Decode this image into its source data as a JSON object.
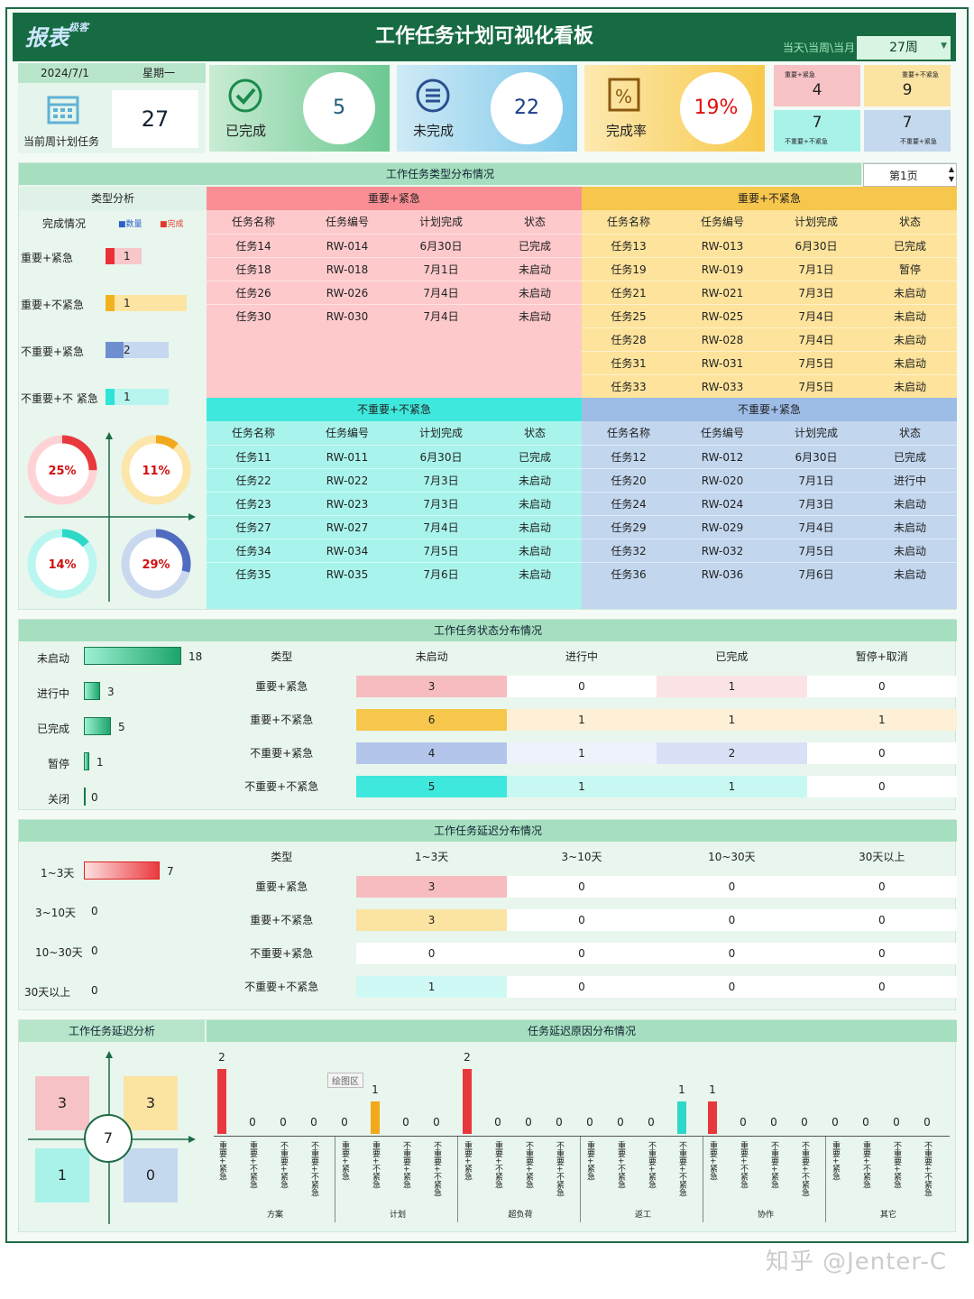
{
  "header": {
    "logo": "报表",
    "logo_sub": "极客",
    "title": "工作任务计划可视化看板",
    "scope": "当天\\当周\\当月",
    "week": "27周"
  },
  "date_card": {
    "date": "2024/7/1",
    "weekday": "星期一",
    "count": "27",
    "label": "当前周计划任务"
  },
  "kpis": [
    {
      "label": "已完成",
      "value": "5",
      "icon": "check-icon"
    },
    {
      "label": "未完成",
      "value": "22",
      "icon": "list-icon"
    },
    {
      "label": "完成率",
      "value": "19%",
      "icon": "percent-icon"
    }
  ],
  "quadrant_mini": [
    {
      "label": "重要+紧急",
      "value": "4"
    },
    {
      "label": "重要+不紧急",
      "value": "9"
    },
    {
      "label": "不重要+不紧急",
      "value": "7"
    },
    {
      "label": "不重要+紧急",
      "value": "7"
    }
  ],
  "type_section": {
    "title": "工作任务类型分布情况",
    "page": "第1页",
    "analysis_title": "类型分析",
    "completion_label": "完成情况",
    "legend_count": "■数量",
    "legend_done": "■完成",
    "bars": [
      {
        "label": "重要+紧急",
        "count": 4,
        "done": 1,
        "value": "1"
      },
      {
        "label": "重要+不紧急",
        "count": 9,
        "done": 1,
        "value": "1"
      },
      {
        "label": "不重要+紧急",
        "count": 7,
        "done": 2,
        "value": "2"
      },
      {
        "label": "不重要+不 紧急",
        "count": 7,
        "done": 1,
        "value": "1"
      }
    ],
    "rings": [
      {
        "pct": 0.25,
        "text": "25%"
      },
      {
        "pct": 0.11,
        "text": "11%"
      },
      {
        "pct": 0.14,
        "text": "14%"
      },
      {
        "pct": 0.29,
        "text": "29%"
      }
    ],
    "columns": [
      "任务名称",
      "任务编号",
      "计划完成",
      "状态"
    ],
    "quadrants": [
      {
        "title": "重要+紧急",
        "rows": [
          [
            "任务14",
            "RW-014",
            "6月30日",
            "已完成"
          ],
          [
            "任务18",
            "RW-018",
            "7月1日",
            "未启动"
          ],
          [
            "任务26",
            "RW-026",
            "7月4日",
            "未启动"
          ],
          [
            "任务30",
            "RW-030",
            "7月4日",
            "未启动"
          ]
        ]
      },
      {
        "title": "重要+不紧急",
        "rows": [
          [
            "任务13",
            "RW-013",
            "6月30日",
            "已完成"
          ],
          [
            "任务19",
            "RW-019",
            "7月1日",
            "暂停"
          ],
          [
            "任务21",
            "RW-021",
            "7月3日",
            "未启动"
          ],
          [
            "任务25",
            "RW-025",
            "7月4日",
            "未启动"
          ],
          [
            "任务28",
            "RW-028",
            "7月4日",
            "未启动"
          ],
          [
            "任务31",
            "RW-031",
            "7月5日",
            "未启动"
          ],
          [
            "任务33",
            "RW-033",
            "7月5日",
            "未启动"
          ]
        ]
      },
      {
        "title": "不重要+不紧急",
        "rows": [
          [
            "任务11",
            "RW-011",
            "6月30日",
            "已完成"
          ],
          [
            "任务22",
            "RW-022",
            "7月3日",
            "未启动"
          ],
          [
            "任务23",
            "RW-023",
            "7月3日",
            "未启动"
          ],
          [
            "任务27",
            "RW-027",
            "7月4日",
            "未启动"
          ],
          [
            "任务34",
            "RW-034",
            "7月5日",
            "未启动"
          ],
          [
            "任务35",
            "RW-035",
            "7月6日",
            "未启动"
          ]
        ]
      },
      {
        "title": "不重要+紧急",
        "rows": [
          [
            "任务12",
            "RW-012",
            "6月30日",
            "已完成"
          ],
          [
            "任务20",
            "RW-020",
            "7月1日",
            "进行中"
          ],
          [
            "任务24",
            "RW-024",
            "7月3日",
            "未启动"
          ],
          [
            "任务29",
            "RW-029",
            "7月4日",
            "未启动"
          ],
          [
            "任务32",
            "RW-032",
            "7月5日",
            "未启动"
          ],
          [
            "任务36",
            "RW-036",
            "7月6日",
            "未启动"
          ]
        ]
      }
    ]
  },
  "status_section": {
    "title": "工作任务状态分布情况",
    "bars": [
      {
        "label": "未启动",
        "value": 18
      },
      {
        "label": "进行中",
        "value": 3
      },
      {
        "label": "已完成",
        "value": 5
      },
      {
        "label": "暂停",
        "value": 1
      },
      {
        "label": "关闭",
        "value": 0
      }
    ],
    "columns": [
      "类型",
      "未启动",
      "进行中",
      "已完成",
      "暂停+取消"
    ],
    "rows": [
      [
        "重要+紧急",
        "3",
        "0",
        "1",
        "0"
      ],
      [
        "重要+不紧急",
        "6",
        "1",
        "1",
        "1"
      ],
      [
        "不重要+紧急",
        "4",
        "1",
        "2",
        "0"
      ],
      [
        "不重要+不紧急",
        "5",
        "1",
        "1",
        "0"
      ]
    ]
  },
  "delay_section": {
    "title": "工作任务延迟分布情况",
    "bars": [
      {
        "label": "1~3天",
        "value": 7
      },
      {
        "label": "3~10天",
        "value": 0
      },
      {
        "label": "10~30天",
        "value": 0
      },
      {
        "label": "30天以上",
        "value": 0
      }
    ],
    "columns": [
      "类型",
      "1~3天",
      "3~10天",
      "10~30天",
      "30天以上"
    ],
    "rows": [
      [
        "重要+紧急",
        "3",
        "0",
        "0",
        "0"
      ],
      [
        "重要+不紧急",
        "3",
        "0",
        "0",
        "0"
      ],
      [
        "不重要+紧急",
        "0",
        "0",
        "0",
        "0"
      ],
      [
        "不重要+不紧急",
        "1",
        "0",
        "0",
        "0"
      ]
    ]
  },
  "delay_analysis": {
    "title": "工作任务延迟分析",
    "center": "7",
    "quads": [
      "3",
      "3",
      "1",
      "0"
    ]
  },
  "chart_data": {
    "type": "bar",
    "title": "任务延迟原因分布情况",
    "tooltip": "绘图区",
    "groups": [
      "方案",
      "计划",
      "超负荷",
      "返工",
      "协作",
      "其它"
    ],
    "categories": [
      "重要+紧急",
      "重要+不紧急",
      "不重要+紧急",
      "不重要+不紧急"
    ],
    "values": [
      [
        2,
        0,
        0,
        0
      ],
      [
        0,
        1,
        0,
        0
      ],
      [
        2,
        0,
        0,
        0
      ],
      [
        0,
        0,
        0,
        1
      ],
      [
        1,
        0,
        0,
        0
      ],
      [
        0,
        0,
        0,
        0
      ]
    ],
    "colors": {
      "a": "#e8383d",
      "b": "#f2a81b",
      "c": "#2ed8c8"
    }
  },
  "watermark": "知乎 @Jenter-C"
}
